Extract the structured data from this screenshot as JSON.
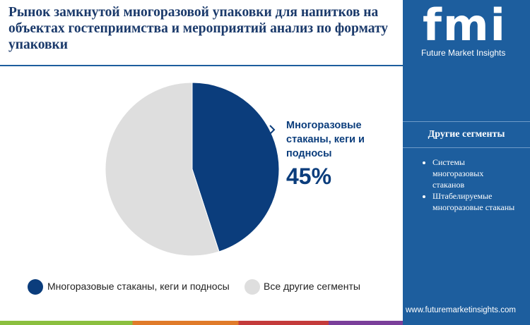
{
  "header": {
    "title": "Рынок замкнутой многоразовой упаковки для напитков на объектах гостеприимства и мероприятий анализ по формату упаковки"
  },
  "chart_data": {
    "type": "pie",
    "categories": [
      "Многоразовые стаканы, кеги и подносы",
      "Все другие сегменты"
    ],
    "values": [
      45,
      55
    ],
    "value_labels": [
      "45%",
      null
    ],
    "colors": [
      "#0b3d7c",
      "#dedede"
    ]
  },
  "sidebar": {
    "brand": "fmi",
    "company": "Future Market Insights",
    "heading": "Другие сегменты",
    "items": [
      "Системы многоразовых стаканов",
      "Штабелируемые многоразовые стаканы"
    ],
    "url": "www.futuremarketinsights.com"
  }
}
